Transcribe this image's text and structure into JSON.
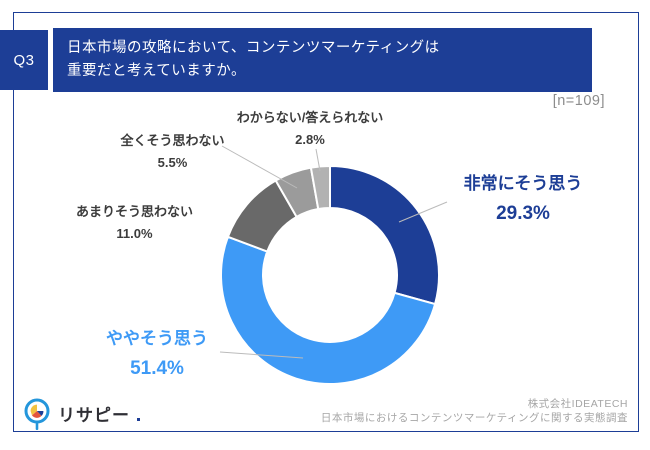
{
  "header": {
    "question_id": "Q3",
    "question_line1": "日本市場の攻略において、コンテンツマーケティングは",
    "question_line2": "重要だと考えていますか。",
    "sample_size": "[n=109]"
  },
  "chart_data": {
    "type": "pie",
    "subtype": "donut",
    "sample_size": 109,
    "start_angle_deg": 0,
    "direction": "clockwise",
    "title": "日本市場の攻略において、コンテンツマーケティングは重要だと考えていますか。",
    "legend_position": "callouts",
    "segments": [
      {
        "label": "非常にそう思う",
        "value": 29.3,
        "pct": "29.3%",
        "color": "#1d3e96"
      },
      {
        "label": "ややそう思う",
        "value": 51.4,
        "pct": "51.4%",
        "color": "#3e9af6"
      },
      {
        "label": "あまりそう思わない",
        "value": 11.0,
        "pct": "11.0%",
        "color": "#696969"
      },
      {
        "label": "全くそう思わない",
        "value": 5.5,
        "pct": "5.5%",
        "color": "#9b9b9b"
      },
      {
        "label": "わからない/答えられない",
        "value": 2.8,
        "pct": "2.8%",
        "color": "#b2b2b2"
      }
    ]
  },
  "footer": {
    "logo_text": "リサピー",
    "company": "株式会社IDEATECH",
    "survey_title": "日本市場におけるコンテンツマーケティングに関する実態調査"
  },
  "colors": {
    "accent_navy": "#1d3e96",
    "accent_light_blue": "#3e9af6",
    "callout_text": "#3c3c3c",
    "muted_text": "#8c8c8c",
    "credit_text": "#a6a6a6",
    "leader_line": "#bbbbbb"
  }
}
